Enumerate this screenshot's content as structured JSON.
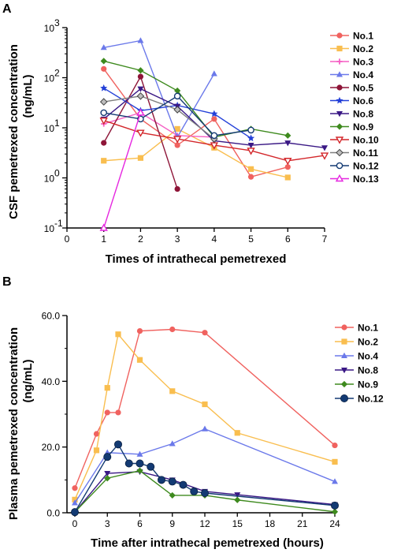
{
  "chart_data": [
    {
      "panel": "A",
      "type": "line",
      "xlabel": "Times of intrathecal pemetrexed",
      "ylabel": "CSF pemetrexed concentration",
      "ylabel_unit": "(ng/mL)",
      "xlim": [
        0,
        7
      ],
      "ylim": [
        0.1,
        1000
      ],
      "yscale": "log",
      "x_ticks": [
        "0",
        "1",
        "2",
        "3",
        "4",
        "5",
        "6",
        "7"
      ],
      "y_ticks": [
        {
          "value": 0.1,
          "base": "10",
          "exp": "-1"
        },
        {
          "value": 1,
          "base": "10",
          "exp": "0"
        },
        {
          "value": 10,
          "base": "10",
          "exp": "1"
        },
        {
          "value": 100,
          "base": "10",
          "exp": "2"
        },
        {
          "value": 1000,
          "base": "10",
          "exp": "3"
        }
      ],
      "legend_position": "right",
      "series": [
        {
          "name": "No.1",
          "color": "#F0625F",
          "marker": "circle",
          "points": [
            [
              1,
              150
            ],
            [
              2,
              15
            ],
            [
              3,
              4.5
            ],
            [
              4,
              15
            ],
            [
              5,
              1.05
            ],
            [
              6,
              1.65
            ]
          ]
        },
        {
          "name": "No.2",
          "color": "#F9BE4F",
          "marker": "square",
          "points": [
            [
              1,
              2.2
            ],
            [
              2,
              2.5
            ],
            [
              3,
              9.5
            ],
            [
              4,
              4
            ],
            [
              5,
              1.5
            ],
            [
              6,
              1.02
            ]
          ]
        },
        {
          "name": "No.3",
          "color": "#F55FC4",
          "marker": "plus",
          "points": [
            [
              1,
              12
            ],
            [
              2,
              20
            ],
            [
              3,
              7
            ],
            [
              4,
              6.5
            ]
          ]
        },
        {
          "name": "No.4",
          "color": "#6B79EA",
          "marker": "triangle",
          "points": [
            [
              1,
              400
            ],
            [
              2,
              550
            ],
            [
              3,
              6.5
            ],
            [
              4,
              120
            ]
          ]
        },
        {
          "name": "No.5",
          "color": "#8E1538",
          "marker": "circle",
          "points": [
            [
              1,
              5
            ],
            [
              2,
              105
            ],
            [
              3,
              0.6
            ]
          ]
        },
        {
          "name": "No.6",
          "color": "#2340D8",
          "marker": "star",
          "points": [
            [
              1,
              62
            ],
            [
              2,
              22
            ],
            [
              3,
              28
            ],
            [
              4,
              19
            ],
            [
              5,
              6.2
            ]
          ]
        },
        {
          "name": "No.8",
          "color": "#3A1885",
          "marker": "triangle-down",
          "points": [
            [
              1,
              15
            ],
            [
              2,
              60
            ],
            [
              3,
              27
            ],
            [
              4,
              5.5
            ],
            [
              5,
              4.5
            ],
            [
              6,
              5
            ],
            [
              7,
              4
            ]
          ]
        },
        {
          "name": "No.9",
          "color": "#3E8A1E",
          "marker": "diamond",
          "points": [
            [
              1,
              215
            ],
            [
              2,
              140
            ],
            [
              3,
              55
            ],
            [
              4,
              6.5
            ],
            [
              5,
              9.5
            ],
            [
              6,
              7
            ]
          ]
        },
        {
          "name": "No.10",
          "color": "#D3262A",
          "marker": "triangle-down-open",
          "points": [
            [
              1,
              14
            ],
            [
              2,
              8
            ],
            [
              3,
              6
            ],
            [
              4,
              4.5
            ],
            [
              5,
              3.5
            ],
            [
              6,
              2.2
            ],
            [
              7,
              2.8
            ]
          ]
        },
        {
          "name": "No.11",
          "color": "#7F7F7F",
          "marker": "diamond-gray",
          "points": [
            [
              1,
              33
            ],
            [
              2,
              43
            ],
            [
              3,
              23
            ],
            [
              4,
              6
            ]
          ]
        },
        {
          "name": "No.12",
          "color": "#133A73",
          "marker": "circle-open",
          "points": [
            [
              1,
              20
            ],
            [
              2,
              15
            ],
            [
              3,
              43
            ],
            [
              4,
              7
            ],
            [
              5,
              9
            ]
          ]
        },
        {
          "name": "No.13",
          "color": "#E627E0",
          "marker": "triangle-open",
          "points": [
            [
              1,
              0.1
            ],
            [
              2,
              20
            ]
          ]
        }
      ]
    },
    {
      "panel": "B",
      "type": "line",
      "xlabel": "Time after intrathecal  pemetrexed (hours)",
      "ylabel": "Plasma pemetrexed concentration",
      "ylabel_unit": "(ng/mL)",
      "xlim": [
        0,
        24
      ],
      "ylim": [
        0,
        60
      ],
      "x_ticks": [
        "0",
        "3",
        "6",
        "9",
        "12",
        "15",
        "18",
        "21",
        "24"
      ],
      "y_ticks": [
        "0.0",
        "20.0",
        "40.0",
        "60.0"
      ],
      "legend_position": "right",
      "series": [
        {
          "name": "No.1",
          "color": "#F0625F",
          "marker": "circle",
          "points": [
            [
              0,
              7.5
            ],
            [
              2,
              24
            ],
            [
              3,
              30.5
            ],
            [
              4,
              30.5
            ],
            [
              6,
              55.3
            ],
            [
              9,
              55.8
            ],
            [
              12,
              54.8
            ],
            [
              24,
              20.5
            ]
          ]
        },
        {
          "name": "No.2",
          "color": "#F9BE4F",
          "marker": "square",
          "points": [
            [
              0,
              4
            ],
            [
              2,
              19
            ],
            [
              3,
              38
            ],
            [
              4,
              54.3
            ],
            [
              6,
              46.5
            ],
            [
              9,
              37
            ],
            [
              12,
              33
            ],
            [
              15,
              24.3
            ],
            [
              24,
              15.5
            ]
          ]
        },
        {
          "name": "No.4",
          "color": "#6B79EA",
          "marker": "triangle",
          "points": [
            [
              0,
              3
            ],
            [
              3,
              18.3
            ],
            [
              6,
              17.8
            ],
            [
              9,
              21
            ],
            [
              12,
              25.5
            ],
            [
              24,
              9.5
            ]
          ]
        },
        {
          "name": "No.8",
          "color": "#3A1885",
          "marker": "triangle-down",
          "points": [
            [
              0,
              0.2
            ],
            [
              3,
              12
            ],
            [
              6,
              12.5
            ],
            [
              9,
              10
            ],
            [
              12,
              6.5
            ],
            [
              15,
              5.5
            ],
            [
              24,
              2.5
            ]
          ]
        },
        {
          "name": "No.9",
          "color": "#3E8A1E",
          "marker": "diamond",
          "points": [
            [
              0,
              0.2
            ],
            [
              3,
              10.5
            ],
            [
              6,
              12.8
            ],
            [
              9,
              5.3
            ],
            [
              12,
              5.3
            ],
            [
              15,
              3.9
            ],
            [
              24,
              0.3
            ]
          ]
        },
        {
          "name": "No.12",
          "color": "#133A73",
          "marker": "circle-filled-big",
          "points": [
            [
              0,
              0.2
            ],
            [
              3,
              17
            ],
            [
              4,
              20.8
            ],
            [
              5,
              15
            ],
            [
              6,
              15
            ],
            [
              7,
              14
            ],
            [
              8,
              10
            ],
            [
              9,
              9.5
            ],
            [
              10,
              8.5
            ],
            [
              11,
              6.5
            ],
            [
              12,
              6
            ],
            [
              24,
              2.2
            ]
          ]
        }
      ]
    }
  ]
}
